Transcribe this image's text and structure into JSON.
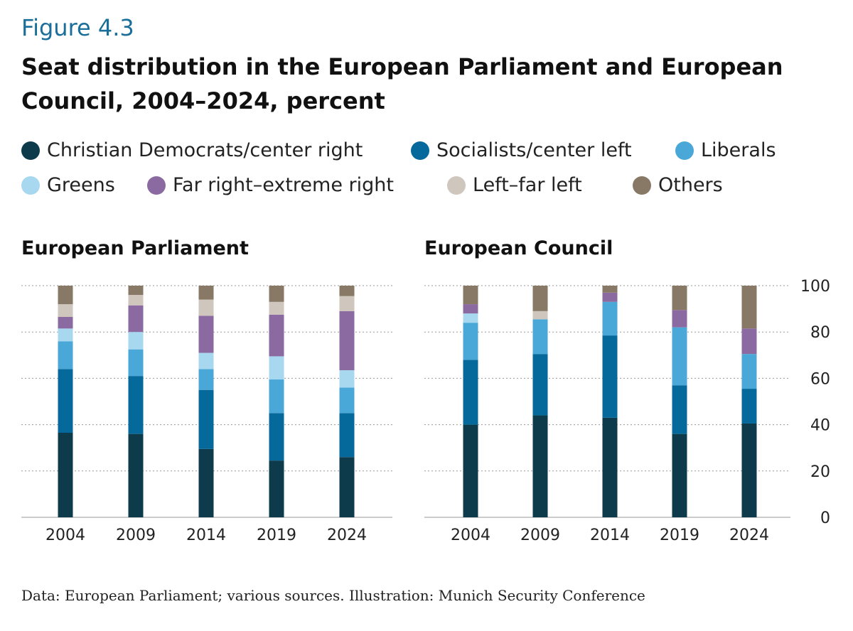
{
  "figure_label": "Figure 4.3",
  "title": "Seat distribution in the European Parliament and European Council, 2004–2024, percent",
  "source": "Data: European Parliament; various sources. Illustration: Munich Security Conference",
  "colors": {
    "Christian Democrats/center right": "#0d3b4c",
    "Socialists/center left": "#05699b",
    "Liberals": "#4aa8d8",
    "Greens": "#a8d8f0",
    "Far right–extreme right": "#8a6aa0",
    "Left–far left": "#cfc6be",
    "Others": "#877965"
  },
  "chart_data": [
    {
      "type": "bar",
      "stacked": true,
      "title": "European Parliament",
      "categories": [
        "2004",
        "2009",
        "2014",
        "2019",
        "2024"
      ],
      "ylim": [
        0,
        100
      ],
      "yticks": [
        "0",
        "20",
        "40",
        "60",
        "80",
        "100"
      ],
      "grid": true,
      "series": [
        {
          "name": "Christian Democrats/center right",
          "values": [
            36.5,
            36,
            29.5,
            24.5,
            26
          ]
        },
        {
          "name": "Socialists/center left",
          "values": [
            27.5,
            25,
            25.5,
            20.5,
            19
          ]
        },
        {
          "name": "Liberals",
          "values": [
            12,
            11.5,
            9,
            14.5,
            11
          ]
        },
        {
          "name": "Greens",
          "values": [
            5.5,
            7.5,
            7,
            10,
            7.5
          ]
        },
        {
          "name": "Far right–extreme right",
          "values": [
            5,
            11.5,
            16,
            18,
            25.5
          ]
        },
        {
          "name": "Left–far left",
          "values": [
            5.5,
            4.5,
            7,
            5.5,
            6.5
          ]
        },
        {
          "name": "Others",
          "values": [
            8,
            4,
            6,
            7,
            4.5
          ]
        }
      ]
    },
    {
      "type": "bar",
      "stacked": true,
      "title": "European Council",
      "categories": [
        "2004",
        "2009",
        "2014",
        "2019",
        "2024"
      ],
      "ylim": [
        0,
        100
      ],
      "yticks": [
        "0",
        "20",
        "40",
        "60",
        "80",
        "100"
      ],
      "grid": true,
      "series": [
        {
          "name": "Christian Democrats/center right",
          "values": [
            40,
            44,
            43,
            36,
            40.5
          ]
        },
        {
          "name": "Socialists/center left",
          "values": [
            28,
            26.5,
            35.5,
            21,
            15
          ]
        },
        {
          "name": "Liberals",
          "values": [
            16,
            15,
            14.5,
            25,
            15
          ]
        },
        {
          "name": "Greens",
          "values": [
            4,
            0,
            0,
            0,
            0
          ]
        },
        {
          "name": "Far right–extreme right",
          "values": [
            4,
            0,
            4,
            7.5,
            11
          ]
        },
        {
          "name": "Left–far left",
          "values": [
            0,
            3.5,
            0,
            0,
            0
          ]
        },
        {
          "name": "Others",
          "values": [
            8,
            11,
            3,
            10.5,
            18.5
          ]
        }
      ]
    }
  ]
}
